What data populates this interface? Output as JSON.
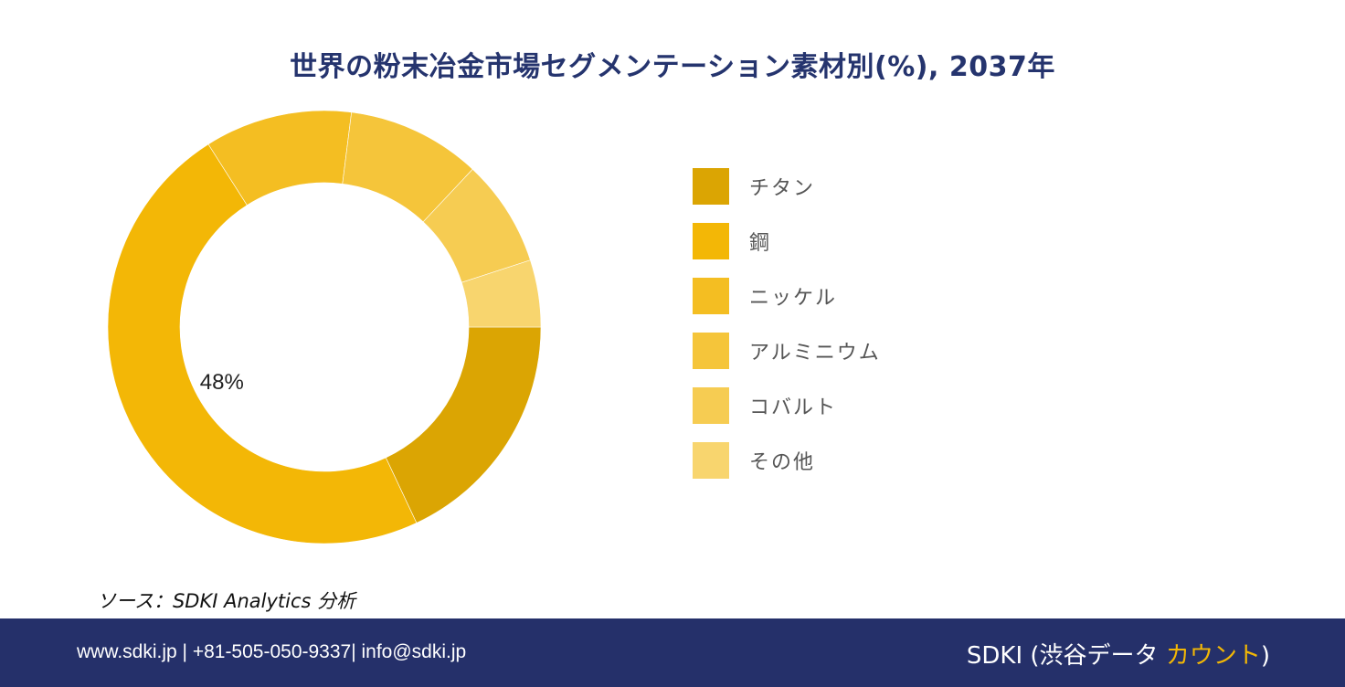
{
  "title": "世界の粉末冶金市場セグメンテーション素材別(%), 2037年",
  "chart_data": {
    "type": "pie",
    "variant": "donut",
    "title": "世界の粉末冶金市場セグメンテーション素材別(%), 2037年",
    "unit": "%",
    "legend_position": "right",
    "slices": [
      {
        "label": "チタン",
        "value": 18,
        "color": "#dba503"
      },
      {
        "label": "鋼",
        "value": 48,
        "color": "#f3b706",
        "data_label": "48%"
      },
      {
        "label": "ニッケル",
        "value": 11,
        "color": "#f4be22"
      },
      {
        "label": "アルミニウム",
        "value": 10,
        "color": "#f5c53a"
      },
      {
        "label": "コバルト",
        "value": 8,
        "color": "#f6cc52"
      },
      {
        "label": "その他",
        "value": 5,
        "color": "#f8d56e"
      }
    ]
  },
  "source": "ソース：SDKI Analytics 分析",
  "footer": {
    "contact": "www.sdki.jp | +81-505-050-9337| info@sdki.jp",
    "brand_prefix": "SDKI (渋谷データ ",
    "brand_accent": "カウント",
    "brand_suffix": ")",
    "accent_color": "#f2b705",
    "background_color": "#25306a"
  }
}
